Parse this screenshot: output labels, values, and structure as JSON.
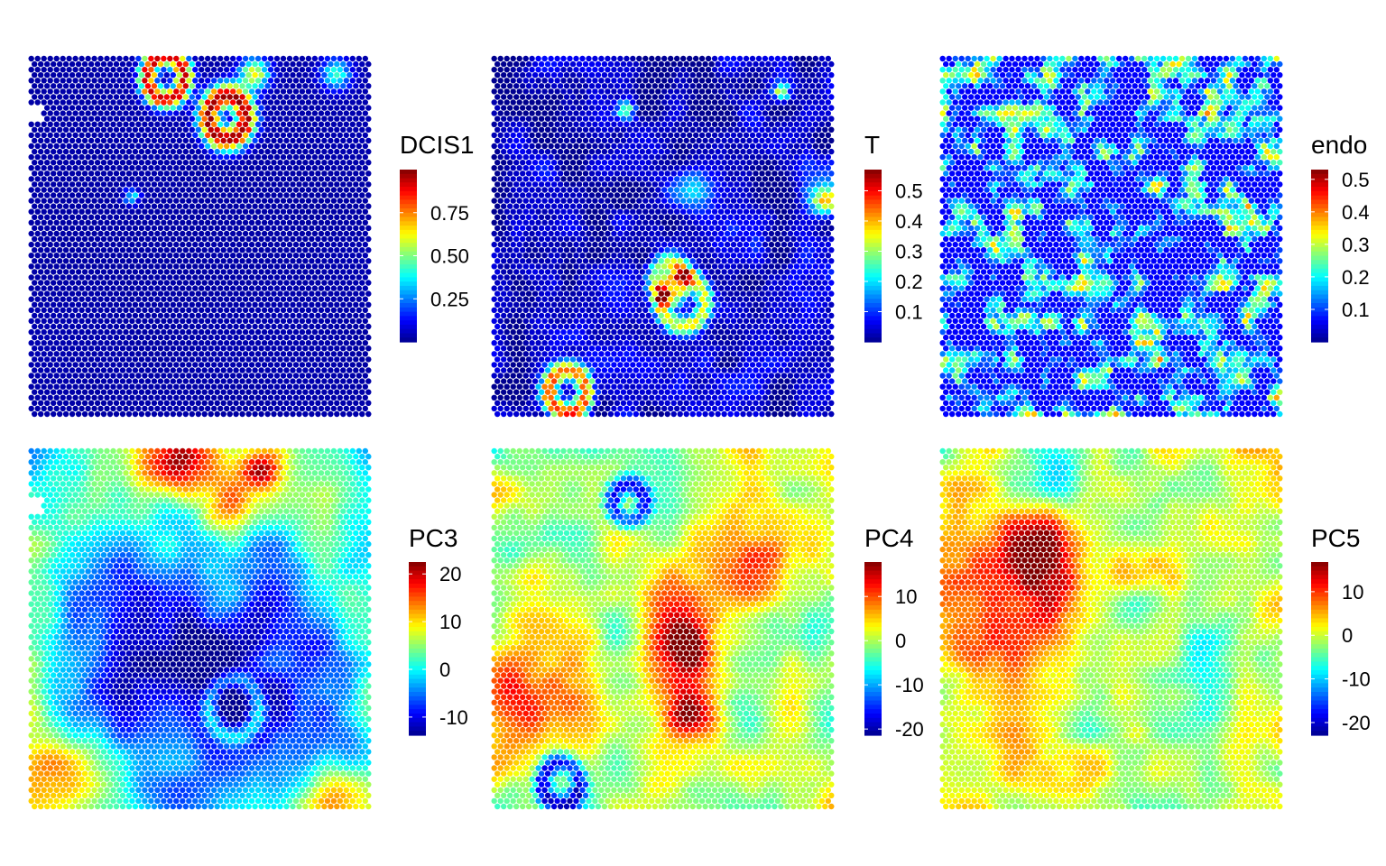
{
  "chart_data": {
    "type": "heatmap",
    "colormap": [
      "#00008F",
      "#0000FF",
      "#00FFFF",
      "#FFFF00",
      "#FF0000",
      "#800000"
    ],
    "panels": [
      {
        "title": "DCIS1",
        "range": [
          0,
          1.0
        ],
        "ticks": [
          0.25,
          0.5,
          0.75
        ],
        "tick_labels": [
          "0.25",
          "0.50",
          "0.75"
        ]
      },
      {
        "title": "T",
        "range": [
          0,
          0.57
        ],
        "ticks": [
          0.1,
          0.2,
          0.3,
          0.4,
          0.5
        ],
        "tick_labels": [
          "0.1",
          "0.2",
          "0.3",
          "0.4",
          "0.5"
        ]
      },
      {
        "title": "endo",
        "range": [
          0,
          0.53
        ],
        "ticks": [
          0.1,
          0.2,
          0.3,
          0.4,
          0.5
        ],
        "tick_labels": [
          "0.1",
          "0.2",
          "0.3",
          "0.4",
          "0.5"
        ]
      },
      {
        "title": "PC3",
        "range": [
          -13.8,
          22.5
        ],
        "ticks": [
          -10,
          0,
          10,
          20
        ],
        "tick_labels": [
          "-10",
          "0",
          "10",
          "20"
        ]
      },
      {
        "title": "PC4",
        "range": [
          -21.4,
          17.8
        ],
        "ticks": [
          -20,
          -10,
          0,
          10
        ],
        "tick_labels": [
          "-20",
          "-10",
          "0",
          "10"
        ]
      },
      {
        "title": "PC5",
        "range": [
          -22.9,
          16.8
        ],
        "ticks": [
          -20,
          -10,
          0,
          10
        ],
        "tick_labels": [
          "-20",
          "-10",
          "0",
          "10"
        ]
      }
    ]
  }
}
